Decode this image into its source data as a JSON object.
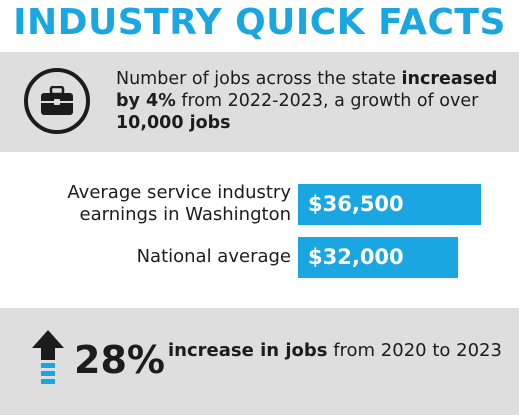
{
  "title": "INDUSTRY QUICK FACTS",
  "fact_jobs": {
    "icon": "briefcase-icon",
    "text_1": "Number of jobs across the state ",
    "bold_1": "increased by 4%",
    "text_2": " from 2022-2023, a growth of over ",
    "bold_2": "10,000 jobs"
  },
  "earnings": {
    "washington": {
      "label": "Average service industry earnings in Washington",
      "value": "$36,500"
    },
    "national": {
      "label": "National average",
      "value": "$32,000"
    }
  },
  "growth": {
    "icon": "up-arrow-icon",
    "percent": "28%",
    "bold": "increase in jobs",
    "text": " from 2020 to 2023"
  },
  "colors": {
    "accent": "#1aa6e0",
    "panel": "#dedede",
    "text": "#1c1c1c"
  }
}
